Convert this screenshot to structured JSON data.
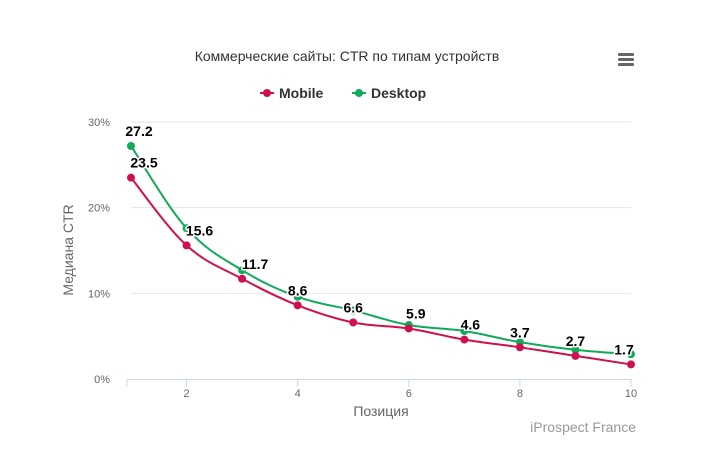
{
  "chart_data": {
    "type": "line",
    "title": "Коммерческие сайты: CTR по типам устройств",
    "xlabel": "Позиция",
    "ylabel": "Медиана CTR",
    "x": [
      1,
      2,
      3,
      4,
      5,
      6,
      7,
      8,
      9,
      10
    ],
    "xlim": [
      1,
      10
    ],
    "ylim": [
      0,
      30
    ],
    "x_ticks": [
      2,
      4,
      6,
      8,
      10
    ],
    "x_tick_labels": [
      "2",
      "4",
      "6",
      "8",
      "10"
    ],
    "y_ticks": [
      0,
      10,
      20,
      30
    ],
    "y_tick_labels": [
      "0%",
      "10%",
      "20%",
      "30%"
    ],
    "grid": true,
    "legend_position": "top-center",
    "series": [
      {
        "name": "Mobile",
        "color": "#d0104c",
        "values": [
          23.5,
          15.6,
          11.7,
          8.6,
          6.6,
          5.9,
          4.6,
          3.7,
          2.7,
          1.7
        ]
      },
      {
        "name": "Desktop",
        "color": "#11a95a",
        "values": [
          27.2,
          17.6,
          12.7,
          9.6,
          8.0,
          6.3,
          5.6,
          4.3,
          3.4,
          2.9
        ]
      }
    ],
    "data_labels": {
      "series": "Mobile",
      "values": [
        "27.2",
        "23.5",
        "15.6",
        "11.7",
        "8.6",
        "6.6",
        "5.9",
        "4.6",
        "3.7",
        "2.7",
        "1.7"
      ],
      "note": "27.2 is labelled at the Desktop point at position 1"
    },
    "credit": "iProspect France"
  },
  "menu": {
    "icon": "hamburger-menu-icon"
  }
}
